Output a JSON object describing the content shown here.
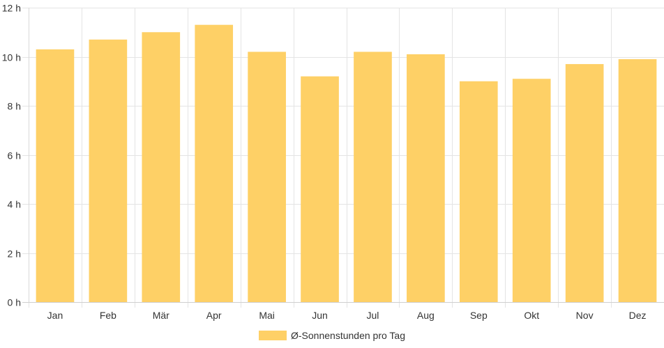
{
  "chart_data": {
    "type": "bar",
    "categories": [
      "Jan",
      "Feb",
      "Mär",
      "Apr",
      "Mai",
      "Jun",
      "Jul",
      "Aug",
      "Sep",
      "Okt",
      "Nov",
      "Dez"
    ],
    "series": [
      {
        "name": "Ø-Sonnenstunden pro Tag",
        "values": [
          10.3,
          10.7,
          11.0,
          11.3,
          10.2,
          9.2,
          10.2,
          10.1,
          9.0,
          9.1,
          9.7,
          9.9
        ],
        "color": "#fed066"
      }
    ],
    "ylim": [
      0,
      12
    ],
    "yticks": [
      "0 h",
      "2 h",
      "4 h",
      "6 h",
      "8 h",
      "10 h",
      "12 h"
    ],
    "grid": true,
    "legend_position": "bottom"
  }
}
